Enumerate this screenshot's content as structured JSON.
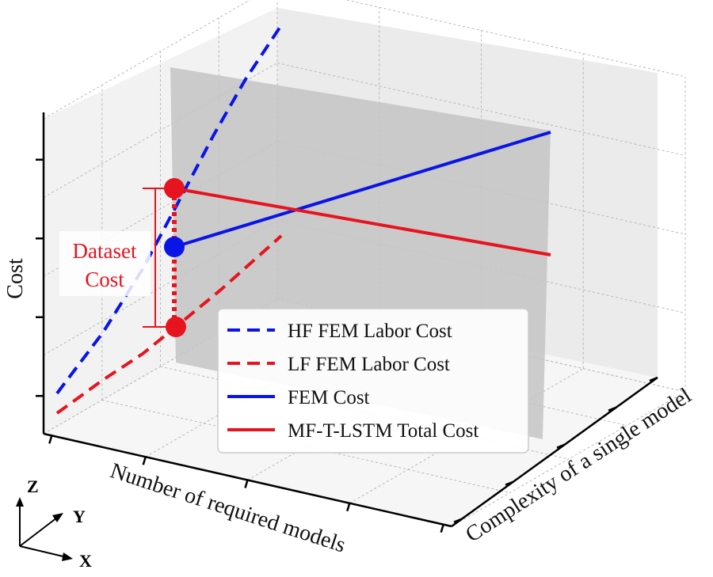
{
  "chart_data": {
    "type": "line-3d",
    "title": "",
    "axes": {
      "x": {
        "label": "Number of required models",
        "range": [
          0,
          1
        ],
        "tick_labels": []
      },
      "y": {
        "label": "Complexity of a single model",
        "range": [
          0,
          1
        ],
        "tick_labels": []
      },
      "z": {
        "label": "Cost",
        "range": [
          0,
          1
        ],
        "tick_labels": []
      }
    },
    "grid": true,
    "series": [
      {
        "name": "HF FEM Labor Cost",
        "style": "dashed",
        "color": "#0a14e6",
        "description": "Cost grows nonlinearly with the number of required models",
        "points": [
          {
            "x": 0.0,
            "z": 0.12
          },
          {
            "x": 0.25,
            "z": 0.32
          },
          {
            "x": 0.5,
            "z": 0.58
          },
          {
            "x": 0.75,
            "z": 0.9
          },
          {
            "x": 1.0,
            "z": 1.25
          }
        ]
      },
      {
        "name": "LF FEM Labor Cost",
        "style": "dashed",
        "color": "#e6141e",
        "points": [
          {
            "x": 0.0,
            "z": 0.08
          },
          {
            "x": 0.25,
            "z": 0.16
          },
          {
            "x": 0.5,
            "z": 0.27
          },
          {
            "x": 0.75,
            "z": 0.4
          },
          {
            "x": 1.0,
            "z": 0.55
          }
        ]
      },
      {
        "name": "FEM Cost",
        "style": "solid",
        "color": "#0a14e6",
        "points": [
          {
            "y": 0.0,
            "z": 0.44
          },
          {
            "y": 1.0,
            "z": 0.76
          }
        ]
      },
      {
        "name": "MF-T-LSTM Total Cost",
        "style": "solid",
        "color": "#e6141e",
        "points": [
          {
            "y": 0.0,
            "z": 0.62
          },
          {
            "y": 1.0,
            "z": 0.48
          }
        ]
      }
    ],
    "markers": [
      {
        "name": "MF-T-LSTM total cost point",
        "color": "#e6141e",
        "z": 0.62
      },
      {
        "name": "FEM cost point",
        "color": "#0a14e6",
        "z": 0.44
      },
      {
        "name": "LF cost point",
        "color": "#e6141e",
        "z": 0.26
      }
    ],
    "annotations": [
      {
        "text_lines": [
          "Dataset",
          "Cost"
        ],
        "color": "#e6141e"
      }
    ],
    "legend": {
      "position": "bottom-center",
      "entries": [
        "HF FEM Labor Cost",
        "LF FEM Labor Cost",
        "FEM Cost",
        "MF-T-LSTM Total Cost"
      ]
    },
    "axis_triad": {
      "labels": [
        "Z",
        "Y",
        "X"
      ]
    }
  }
}
